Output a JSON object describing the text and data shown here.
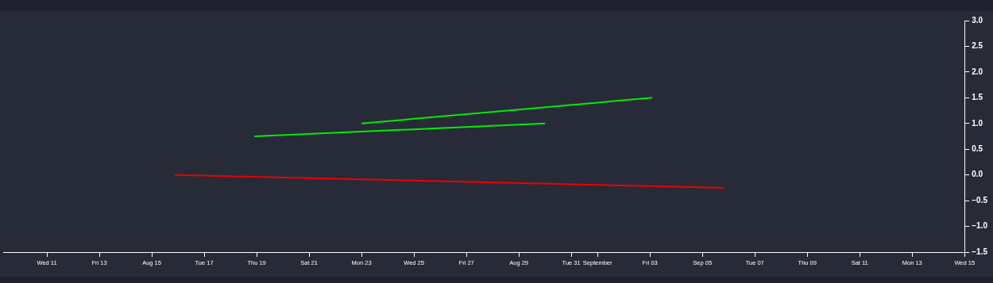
{
  "chart_data": {
    "type": "line",
    "series": [
      {
        "color": "#ee0000",
        "x": [
          "--08-15T21:00",
          "--09-05T20:00"
        ],
        "values": [
          0,
          -0.25
        ]
      },
      {
        "color": "#00ee00",
        "x": [
          "--08-18T22:00",
          "--08-30T00:00"
        ],
        "values": [
          0.75,
          1
        ]
      },
      {
        "color": "#00ee00",
        "x": [
          "--08-23T00:00",
          "--09-03T02:00"
        ],
        "values": [
          1,
          1.5
        ]
      }
    ],
    "xlim": [
      "--08-09T08:00",
      "--09-15"
    ],
    "xticks": [
      {
        "value": "--08-11",
        "label": "Wed 11"
      },
      {
        "value": "--08-13",
        "label": "Fri 13"
      },
      {
        "value": "--08-15",
        "label": "Aug 15"
      },
      {
        "value": "--08-17",
        "label": "Tue 17"
      },
      {
        "value": "--08-19",
        "label": "Thu 19"
      },
      {
        "value": "--08-21",
        "label": "Sat 21"
      },
      {
        "value": "--08-23",
        "label": "Mon 23"
      },
      {
        "value": "--08-25",
        "label": "Wed 25"
      },
      {
        "value": "--08-27",
        "label": "Fri 27"
      },
      {
        "value": "--08-29",
        "label": "Aug 29"
      },
      {
        "value": "--08-31",
        "label": "Tue 31"
      },
      {
        "value": "--09-01",
        "label": "September"
      },
      {
        "value": "--09-03",
        "label": "Fri 03"
      },
      {
        "value": "--09-05",
        "label": "Sep 05"
      },
      {
        "value": "--09-07",
        "label": "Tue 07"
      },
      {
        "value": "--09-09",
        "label": "Thu 09"
      },
      {
        "value": "--09-11",
        "label": "Sat 11"
      },
      {
        "value": "--09-13",
        "label": "Mon 13"
      },
      {
        "value": "--09-15",
        "label": "Wed 15"
      }
    ],
    "ylim": [
      -1.5,
      3
    ],
    "yticks": [
      {
        "value": -1.5,
        "label": "−1.5"
      },
      {
        "value": -1,
        "label": "−1.0"
      },
      {
        "value": -0.5,
        "label": "−0.5"
      },
      {
        "value": 0,
        "label": "0.0"
      },
      {
        "value": 0.5,
        "label": "0.5"
      },
      {
        "value": 1,
        "label": "1.0"
      },
      {
        "value": 1.5,
        "label": "1.5"
      },
      {
        "value": 2,
        "label": "2.0"
      },
      {
        "value": 2.5,
        "label": "2.5"
      },
      {
        "value": 3,
        "label": "3.0"
      }
    ],
    "grid": false,
    "legend": false,
    "marker": "none",
    "line_style": "solid"
  }
}
